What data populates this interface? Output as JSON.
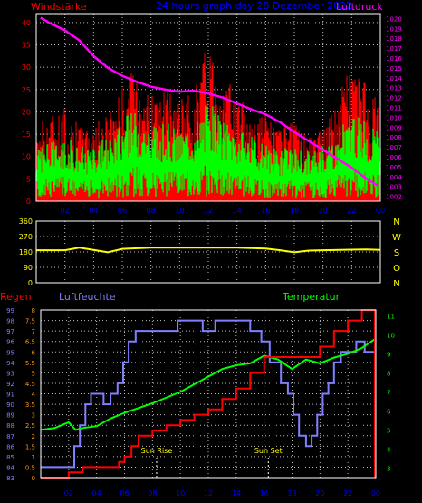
{
  "header": {
    "left_title": "Windstärke",
    "center_title": "24 hours graph day  28 Dezember 2022",
    "right_title": "Luftdruck"
  },
  "colors": {
    "background": "#000000",
    "axes": "#ffffff",
    "grid": "#bdbdbd",
    "gust": "#ff0000",
    "wind": "#00ff00",
    "pressure": "#ff00ff",
    "direction": "#ffff00",
    "humidity": "#7f7fff",
    "temperature": "#00ff00",
    "rain": "#ff0000",
    "title_left": "#ff0000",
    "title_center": "#0000ff",
    "rain_axis": "#ff9900",
    "hum_axis": "#7f7fff",
    "temp_axis": "#00ff00"
  },
  "x_ticks": [
    "02",
    "04",
    "06",
    "08",
    "10",
    "12",
    "14",
    "16",
    "18",
    "20",
    "22",
    "00"
  ],
  "chart_data": [
    {
      "type": "line",
      "name": "wind-pressure",
      "y_left_label": "Windstärke",
      "y_left_ticks": [
        0,
        5,
        10,
        15,
        20,
        25,
        30,
        35,
        40
      ],
      "y_left_range": [
        0,
        42
      ],
      "y_right_label": "Luftdruck",
      "y_right_ticks": [
        1002,
        1003,
        1004,
        1005,
        1006,
        1007,
        1008,
        1009,
        1010,
        1011,
        1012,
        1013,
        1014,
        1015,
        1016,
        1017,
        1018,
        1019,
        1020
      ],
      "y_right_range": [
        1001.5,
        1020.5
      ],
      "x_hours": [
        0,
        24
      ],
      "series": [
        {
          "name": "pressure",
          "color": "#ff00ff",
          "points": [
            [
              0.3,
              1020.1
            ],
            [
              1,
              1019.5
            ],
            [
              2,
              1018.8
            ],
            [
              3,
              1017.8
            ],
            [
              4,
              1016.2
            ],
            [
              5,
              1015.0
            ],
            [
              6,
              1014.2
            ],
            [
              7,
              1013.6
            ],
            [
              8,
              1013.1
            ],
            [
              9,
              1012.8
            ],
            [
              10,
              1012.6
            ],
            [
              11,
              1012.7
            ],
            [
              12,
              1012.4
            ],
            [
              13,
              1012.0
            ],
            [
              14,
              1011.4
            ],
            [
              15,
              1010.8
            ],
            [
              16,
              1010.3
            ],
            [
              17,
              1009.5
            ],
            [
              18,
              1008.5
            ],
            [
              19,
              1007.6
            ],
            [
              20,
              1006.7
            ],
            [
              21,
              1005.8
            ],
            [
              22,
              1004.9
            ],
            [
              23,
              1003.8
            ],
            [
              23.8,
              1003.1
            ]
          ]
        },
        {
          "name": "gust",
          "color": "#ff0000",
          "envelope": [
            [
              0,
              18
            ],
            [
              1,
              20
            ],
            [
              2,
              21
            ],
            [
              3,
              17
            ],
            [
              4,
              17
            ],
            [
              5,
              20
            ],
            [
              6,
              26
            ],
            [
              7,
              31
            ],
            [
              8,
              24
            ],
            [
              9,
              25
            ],
            [
              10,
              23
            ],
            [
              11,
              25
            ],
            [
              12,
              37
            ],
            [
              13,
              29
            ],
            [
              14,
              24
            ],
            [
              15,
              20
            ],
            [
              16,
              20
            ],
            [
              17,
              16
            ],
            [
              18,
              18
            ],
            [
              19,
              15
            ],
            [
              20,
              16
            ],
            [
              21,
              23
            ],
            [
              22,
              33
            ],
            [
              23,
              26
            ],
            [
              24,
              22
            ]
          ]
        },
        {
          "name": "wind",
          "color": "#00ff00",
          "envelope": [
            [
              0,
              12
            ],
            [
              1,
              13
            ],
            [
              2,
              14
            ],
            [
              3,
              12
            ],
            [
              4,
              12
            ],
            [
              5,
              14
            ],
            [
              6,
              18
            ],
            [
              7,
              20
            ],
            [
              8,
              16
            ],
            [
              9,
              17
            ],
            [
              10,
              16
            ],
            [
              11,
              17
            ],
            [
              12,
              22
            ],
            [
              13,
              18
            ],
            [
              14,
              16
            ],
            [
              15,
              14
            ],
            [
              16,
              12
            ],
            [
              17,
              11
            ],
            [
              18,
              12
            ],
            [
              19,
              11
            ],
            [
              20,
              12
            ],
            [
              21,
              15
            ],
            [
              22,
              19
            ],
            [
              23,
              17
            ],
            [
              24,
              15
            ]
          ]
        }
      ]
    },
    {
      "type": "line",
      "name": "wind-direction",
      "y_left_ticks": [
        0,
        90,
        180,
        270,
        360
      ],
      "y_left_range": [
        0,
        360
      ],
      "y_right_labels": [
        "N",
        "W",
        "S",
        "O",
        "N"
      ],
      "series": [
        {
          "name": "direction",
          "color": "#ffff00",
          "points": [
            [
              0,
              190
            ],
            [
              2,
              190
            ],
            [
              3,
              205
            ],
            [
              4,
              192
            ],
            [
              5,
              178
            ],
            [
              6,
              198
            ],
            [
              8,
              205
            ],
            [
              12,
              205
            ],
            [
              14,
              205
            ],
            [
              16,
              200
            ],
            [
              17,
              190
            ],
            [
              18,
              178
            ],
            [
              19,
              188
            ],
            [
              20,
              190
            ],
            [
              23,
              195
            ],
            [
              24,
              192
            ]
          ]
        }
      ]
    },
    {
      "type": "line",
      "name": "weather",
      "titles": {
        "rain": "Regen",
        "humidity": "Luftfeuchte",
        "temperature": "Temperatur"
      },
      "y_rain_ticks": [
        0,
        0.5,
        1,
        1.5,
        2,
        2.5,
        3,
        3.5,
        4,
        4.5,
        5,
        5.5,
        6,
        6.5,
        7,
        7.5,
        8
      ],
      "y_rain_range": [
        0,
        8
      ],
      "y_hum_ticks": [
        83,
        84,
        85,
        86,
        87,
        88,
        89,
        90,
        91,
        92,
        93,
        94,
        95,
        96,
        97,
        98,
        99
      ],
      "y_hum_range": [
        83,
        99
      ],
      "y_temp_ticks": [
        3,
        4,
        5,
        6,
        7,
        8,
        9,
        10,
        11
      ],
      "y_temp_range": [
        2.5,
        11.3
      ],
      "annotations": [
        {
          "label": "Sun Rise",
          "hour": 8.3
        },
        {
          "label": "Sun Set",
          "hour": 16.3
        }
      ],
      "series": [
        {
          "name": "humidity",
          "color": "#7f7fff",
          "step": true,
          "points": [
            [
              0,
              84
            ],
            [
              2,
              84
            ],
            [
              2.4,
              86
            ],
            [
              2.8,
              88
            ],
            [
              3.2,
              90
            ],
            [
              3.6,
              91
            ],
            [
              4.2,
              91
            ],
            [
              4.5,
              90
            ],
            [
              5,
              91
            ],
            [
              5.5,
              92
            ],
            [
              5.9,
              94
            ],
            [
              6.3,
              96
            ],
            [
              6.8,
              97
            ],
            [
              9.8,
              98
            ],
            [
              11.6,
              97
            ],
            [
              12.5,
              98
            ],
            [
              14,
              98
            ],
            [
              15,
              97
            ],
            [
              15.8,
              96
            ],
            [
              16.4,
              94
            ],
            [
              17.2,
              92
            ],
            [
              17.7,
              91
            ],
            [
              18.1,
              89
            ],
            [
              18.5,
              87
            ],
            [
              19,
              86
            ],
            [
              19.4,
              87
            ],
            [
              19.8,
              89
            ],
            [
              20.2,
              91
            ],
            [
              20.6,
              92
            ],
            [
              21,
              94
            ],
            [
              21.5,
              95
            ],
            [
              22,
              95
            ],
            [
              22.6,
              96
            ],
            [
              23.2,
              95
            ],
            [
              24,
              95
            ]
          ]
        },
        {
          "name": "temperature",
          "color": "#00ff00",
          "points": [
            [
              0,
              5.0
            ],
            [
              1,
              5.1
            ],
            [
              2,
              5.4
            ],
            [
              2.5,
              5.0
            ],
            [
              3,
              5.1
            ],
            [
              4,
              5.2
            ],
            [
              5,
              5.6
            ],
            [
              6,
              5.9
            ],
            [
              8,
              6.4
            ],
            [
              10,
              7.0
            ],
            [
              12,
              7.8
            ],
            [
              13,
              8.2
            ],
            [
              14,
              8.4
            ],
            [
              15,
              8.5
            ],
            [
              16,
              8.9
            ],
            [
              17,
              8.7
            ],
            [
              18,
              8.2
            ],
            [
              19,
              8.7
            ],
            [
              20,
              8.5
            ],
            [
              21,
              8.8
            ],
            [
              22,
              9.0
            ],
            [
              23,
              9.3
            ],
            [
              24,
              9.8
            ]
          ]
        },
        {
          "name": "rain",
          "color": "#ff0000",
          "step": true,
          "points": [
            [
              0,
              0
            ],
            [
              1.5,
              0
            ],
            [
              2,
              0.25
            ],
            [
              3,
              0.5
            ],
            [
              5,
              0.5
            ],
            [
              5.6,
              0.75
            ],
            [
              6,
              1.0
            ],
            [
              6.5,
              1.5
            ],
            [
              7,
              2.0
            ],
            [
              8,
              2.25
            ],
            [
              9,
              2.5
            ],
            [
              10,
              2.75
            ],
            [
              11,
              3.0
            ],
            [
              12,
              3.25
            ],
            [
              13,
              3.75
            ],
            [
              14,
              4.25
            ],
            [
              15,
              5.0
            ],
            [
              16,
              5.75
            ],
            [
              17,
              5.75
            ],
            [
              18,
              5.75
            ],
            [
              19,
              5.75
            ],
            [
              20,
              6.25
            ],
            [
              21,
              7.0
            ],
            [
              22,
              7.5
            ],
            [
              23,
              8.0
            ],
            [
              24,
              8.0
            ]
          ]
        }
      ]
    }
  ]
}
